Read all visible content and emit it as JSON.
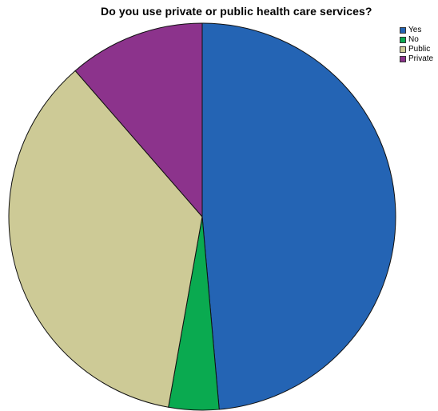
{
  "chart_data": {
    "type": "pie",
    "title": "Do you use private or public health care services?",
    "legend_placement": "top-right",
    "categories": [
      "Yes",
      "No",
      "Public",
      "Private"
    ],
    "values": [
      48.6,
      4.2,
      35.8,
      11.4
    ],
    "colors": [
      "#2464B4",
      "#0AAA50",
      "#CDCA96",
      "#8C338C"
    ],
    "start_angle_deg": 0,
    "direction": "clockwise",
    "data_labels": false
  }
}
